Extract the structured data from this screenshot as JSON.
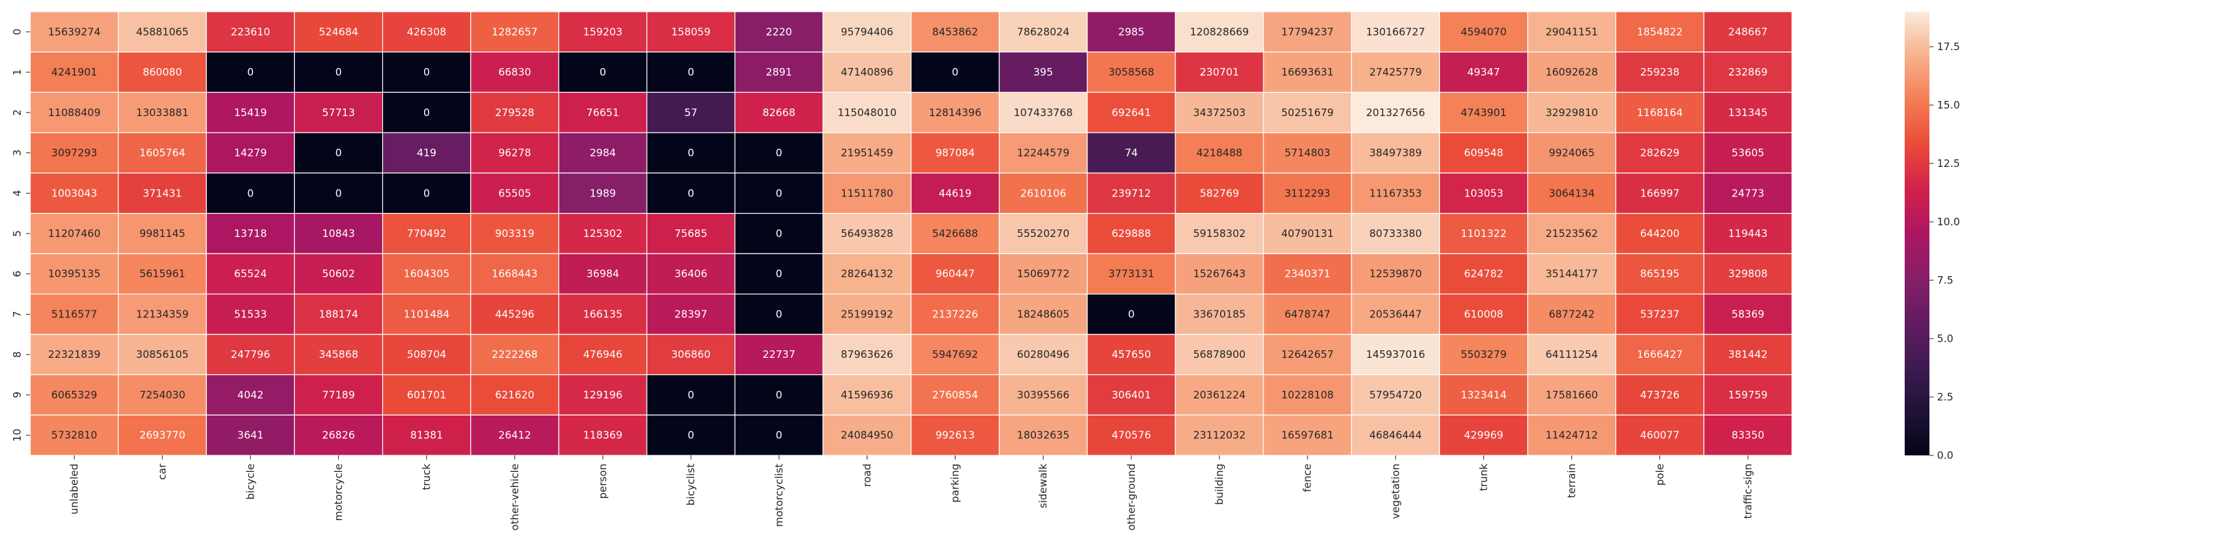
{
  "chart_data": {
    "type": "heatmap",
    "title": "",
    "xlabel": "",
    "ylabel": "",
    "columns": [
      "unlabeled",
      "car",
      "bicycle",
      "motorcycle",
      "truck",
      "other-vehicle",
      "person",
      "bicyclist",
      "motorcyclist",
      "road",
      "parking",
      "sidewalk",
      "other-ground",
      "building",
      "fence",
      "vegetation",
      "trunk",
      "terrain",
      "pole",
      "traffic-sign"
    ],
    "rows": [
      "0",
      "1",
      "2",
      "3",
      "4",
      "5",
      "6",
      "7",
      "8",
      "9",
      "10"
    ],
    "values": [
      [
        15639274,
        45881065,
        223610,
        524684,
        426308,
        1282657,
        159203,
        158059,
        2220,
        95794406,
        8453862,
        78628024,
        2985,
        120828669,
        17794237,
        130166727,
        4594070,
        29041151,
        1854822,
        248667
      ],
      [
        4241901,
        860080,
        0,
        0,
        0,
        66830,
        0,
        0,
        2891,
        47140896,
        0,
        395,
        3058568,
        230701,
        16693631,
        27425779,
        49347,
        16092628,
        259238,
        232869
      ],
      [
        11088409,
        13033881,
        15419,
        57713,
        0,
        279528,
        76651,
        57,
        82668,
        115048010,
        12814396,
        107433768,
        692641,
        34372503,
        50251679,
        201327656,
        4743901,
        32929810,
        1168164,
        131345
      ],
      [
        3097293,
        1605764,
        14279,
        0,
        419,
        96278,
        2984,
        0,
        0,
        21951459,
        987084,
        12244579,
        74,
        4218488,
        5714803,
        38497389,
        609548,
        9924065,
        282629,
        53605
      ],
      [
        1003043,
        371431,
        0,
        0,
        0,
        65505,
        1989,
        0,
        0,
        11511780,
        44619,
        2610106,
        239712,
        582769,
        3112293,
        11167353,
        103053,
        3064134,
        166997,
        24773
      ],
      [
        11207460,
        9981145,
        13718,
        10843,
        770492,
        903319,
        125302,
        75685,
        0,
        56493828,
        5426688,
        55520270,
        629888,
        59158302,
        40790131,
        80733380,
        1101322,
        21523562,
        644200,
        119443
      ],
      [
        10395135,
        5615961,
        65524,
        50602,
        1604305,
        1668443,
        36984,
        36406,
        0,
        28264132,
        960447,
        15069772,
        3773131,
        15267643,
        2340371,
        12539870,
        624782,
        35144177,
        865195,
        329808
      ],
      [
        5116577,
        12134359,
        51533,
        188174,
        1101484,
        445296,
        166135,
        28397,
        0,
        25199192,
        2137226,
        18248605,
        0,
        33670185,
        6478747,
        20536447,
        610008,
        6877242,
        537237,
        58369
      ],
      [
        22321839,
        30856105,
        247796,
        345868,
        508704,
        2222268,
        476946,
        306860,
        22737,
        87963626,
        5947692,
        60280496,
        457650,
        56878900,
        12642657,
        145937016,
        5503279,
        64111254,
        1666427,
        381442
      ],
      [
        6065329,
        7254030,
        4042,
        77189,
        601701,
        621620,
        129196,
        0,
        0,
        41596936,
        2760854,
        30395566,
        306401,
        20361224,
        10228108,
        57954720,
        1323414,
        17581660,
        473726,
        159759
      ],
      [
        5732810,
        2693770,
        3641,
        26826,
        81381,
        26412,
        118369,
        0,
        0,
        24084950,
        992613,
        18032635,
        470576,
        23112032,
        16597681,
        46846444,
        429969,
        11424712,
        460077,
        83350
      ]
    ],
    "color_scale": "log1p",
    "colormap": "rocket",
    "colorbar": {
      "range": [
        0.0,
        19.0
      ],
      "ticks": [
        "0.0",
        "2.5",
        "5.0",
        "7.5",
        "10.0",
        "12.5",
        "15.0",
        "17.5"
      ]
    },
    "grid": false,
    "legend": "colorbar-right"
  }
}
